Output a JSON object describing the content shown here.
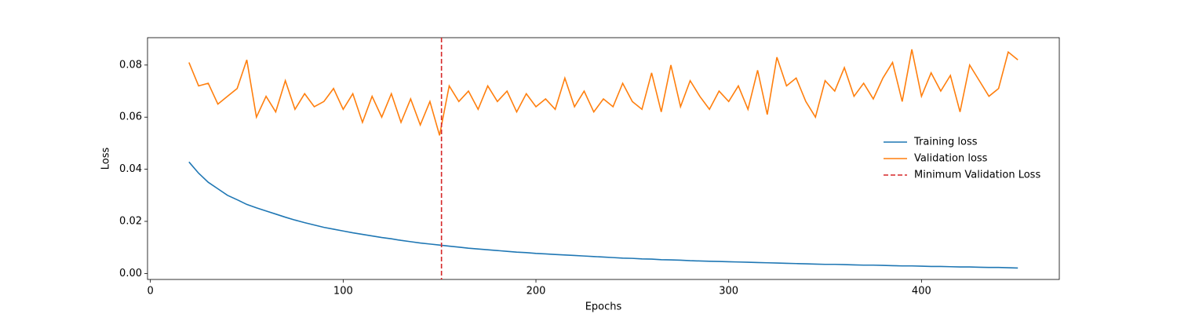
{
  "chart_data": {
    "type": "line",
    "x_label": "Epochs",
    "y_label": "Loss",
    "xlim": [
      -1.5,
      471.5
    ],
    "ylim": [
      -0.0023,
      0.0905
    ],
    "xticks": [
      0,
      100,
      200,
      300,
      400
    ],
    "yticks": [
      {
        "value": 0,
        "label": "0.00"
      },
      0.02,
      0.04,
      0.06,
      0.08
    ],
    "grid": false,
    "legend": "center right",
    "x": [
      20,
      25,
      30,
      35,
      40,
      45,
      50,
      55,
      60,
      65,
      70,
      75,
      80,
      85,
      90,
      95,
      100,
      105,
      110,
      115,
      120,
      125,
      130,
      135,
      140,
      145,
      150,
      155,
      160,
      165,
      170,
      175,
      180,
      185,
      190,
      195,
      200,
      205,
      210,
      215,
      220,
      225,
      230,
      235,
      240,
      245,
      250,
      255,
      260,
      265,
      270,
      275,
      280,
      285,
      290,
      295,
      300,
      305,
      310,
      315,
      320,
      325,
      330,
      335,
      340,
      345,
      350,
      355,
      360,
      365,
      370,
      375,
      380,
      385,
      390,
      395,
      400,
      405,
      410,
      415,
      420,
      425,
      430,
      435,
      440,
      445,
      450
    ],
    "series": [
      {
        "name": "Training loss",
        "color": "#1f77b4",
        "values": [
          0.0428,
          0.0385,
          0.035,
          0.0325,
          0.03,
          0.0283,
          0.0265,
          0.0252,
          0.024,
          0.0228,
          0.0216,
          0.0205,
          0.0195,
          0.0186,
          0.0177,
          0.017,
          0.0163,
          0.0156,
          0.015,
          0.0144,
          0.0138,
          0.0133,
          0.0127,
          0.0122,
          0.0117,
          0.0113,
          0.0109,
          0.0105,
          0.0101,
          0.0097,
          0.0094,
          0.0091,
          0.0088,
          0.0085,
          0.0082,
          0.008,
          0.0077,
          0.0075,
          0.0073,
          0.0071,
          0.0069,
          0.0067,
          0.0065,
          0.0063,
          0.0061,
          0.0059,
          0.0058,
          0.0056,
          0.0055,
          0.0053,
          0.0052,
          0.0051,
          0.0049,
          0.0048,
          0.0047,
          0.0046,
          0.0045,
          0.0044,
          0.0043,
          0.0042,
          0.0041,
          0.004,
          0.0039,
          0.0038,
          0.0037,
          0.0036,
          0.0035,
          0.0035,
          0.0034,
          0.0033,
          0.0032,
          0.0032,
          0.0031,
          0.003,
          0.0029,
          0.0029,
          0.0028,
          0.0027,
          0.0027,
          0.0026,
          0.0025,
          0.0025,
          0.0024,
          0.0023,
          0.0023,
          0.0022,
          0.0021
        ]
      },
      {
        "name": "Validation loss",
        "color": "#ff7f0e",
        "values": [
          0.081,
          0.072,
          0.073,
          0.065,
          0.068,
          0.071,
          0.082,
          0.06,
          0.068,
          0.062,
          0.074,
          0.063,
          0.069,
          0.064,
          0.066,
          0.071,
          0.063,
          0.069,
          0.058,
          0.068,
          0.06,
          0.069,
          0.058,
          0.067,
          0.057,
          0.066,
          0.053,
          0.072,
          0.066,
          0.07,
          0.063,
          0.072,
          0.066,
          0.07,
          0.062,
          0.069,
          0.064,
          0.067,
          0.063,
          0.075,
          0.064,
          0.07,
          0.062,
          0.067,
          0.064,
          0.073,
          0.066,
          0.063,
          0.077,
          0.062,
          0.08,
          0.064,
          0.074,
          0.068,
          0.063,
          0.07,
          0.066,
          0.072,
          0.063,
          0.078,
          0.061,
          0.083,
          0.072,
          0.075,
          0.066,
          0.06,
          0.074,
          0.07,
          0.079,
          0.068,
          0.073,
          0.067,
          0.075,
          0.081,
          0.066,
          0.086,
          0.068,
          0.077,
          0.07,
          0.076,
          0.062,
          0.08,
          0.074,
          0.068,
          0.071,
          0.085,
          0.082
        ]
      }
    ],
    "vlines": [
      {
        "name": "Minimum Validation Loss",
        "x": 151,
        "color": "#d62728"
      }
    ]
  }
}
